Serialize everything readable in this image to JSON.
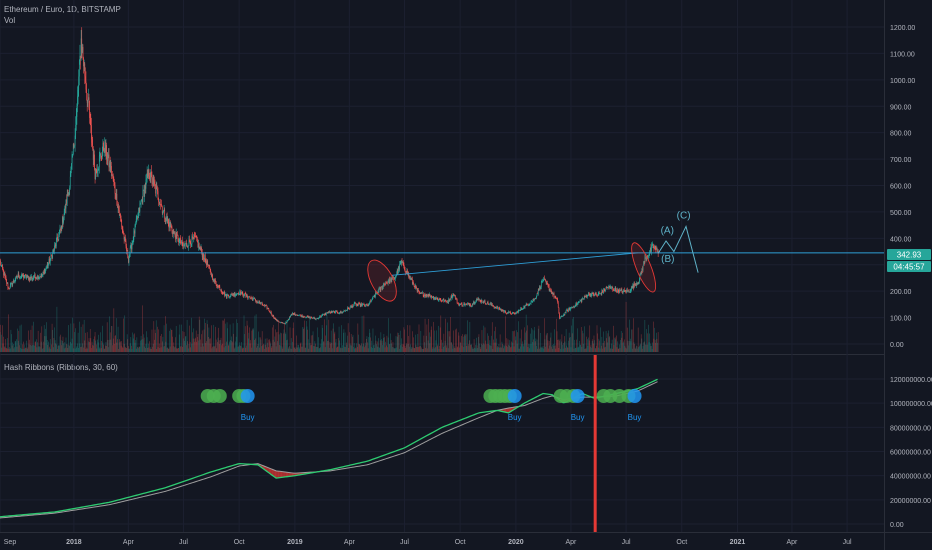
{
  "header": {
    "symbol": "Ethereum / Euro, 1D, BITSTAMP",
    "vol_label": "Vol",
    "indicator_label": "Hash Ribbons (Ribbons, 30, 60)"
  },
  "price_badge": "342.93",
  "countdown_badge": "04:45:57",
  "colors": {
    "background": "#131722",
    "up": "#26a69a",
    "down": "#ef5350",
    "hline": "#2e9ed6",
    "wave": "#5fb3c9",
    "ribbon_fast": "#2ecc71",
    "ribbon_slow": "#9e9e9e",
    "marker_green": "#4caf50",
    "marker_blue": "#2196f3",
    "vline": "#e53935"
  },
  "chart_data": [
    {
      "type": "candlestick",
      "title": "Ethereum / Euro, 1D, BITSTAMP",
      "y_ticks": [
        "1200.00",
        "1100.00",
        "1000.00",
        "900.00",
        "800.00",
        "700.00",
        "600.00",
        "500.00",
        "400.00",
        "300.00",
        "200.00",
        "100.00",
        "0.00"
      ],
      "ylim": [
        0,
        1200
      ],
      "x_ticks": [
        "Sep",
        "2018",
        "Apr",
        "Jul",
        "Oct",
        "2019",
        "Apr",
        "Jul",
        "Oct",
        "2020",
        "Apr",
        "Jul",
        "Oct",
        "2021",
        "Apr",
        "Jul"
      ],
      "x_range": [
        "2017-09-01",
        "2021-08-31"
      ],
      "price_path": [
        [
          "2017-09-01",
          310
        ],
        [
          "2017-09-15",
          210
        ],
        [
          "2017-10-01",
          260
        ],
        [
          "2017-10-20",
          250
        ],
        [
          "2017-11-10",
          260
        ],
        [
          "2017-11-25",
          330
        ],
        [
          "2017-12-10",
          430
        ],
        [
          "2017-12-25",
          600
        ],
        [
          "2018-01-05",
          850
        ],
        [
          "2018-01-13",
          1150
        ],
        [
          "2018-01-25",
          900
        ],
        [
          "2018-02-05",
          650
        ],
        [
          "2018-02-20",
          750
        ],
        [
          "2018-03-05",
          640
        ],
        [
          "2018-03-20",
          460
        ],
        [
          "2018-04-01",
          320
        ],
        [
          "2018-04-20",
          520
        ],
        [
          "2018-05-05",
          650
        ],
        [
          "2018-05-20",
          560
        ],
        [
          "2018-06-01",
          480
        ],
        [
          "2018-06-15",
          420
        ],
        [
          "2018-07-01",
          370
        ],
        [
          "2018-07-20",
          400
        ],
        [
          "2018-08-10",
          300
        ],
        [
          "2018-08-20",
          240
        ],
        [
          "2018-09-10",
          180
        ],
        [
          "2018-10-01",
          195
        ],
        [
          "2018-10-20",
          175
        ],
        [
          "2018-11-15",
          140
        ],
        [
          "2018-12-01",
          90
        ],
        [
          "2018-12-15",
          75
        ],
        [
          "2018-12-28",
          115
        ],
        [
          "2019-01-15",
          105
        ],
        [
          "2019-02-05",
          95
        ],
        [
          "2019-02-25",
          120
        ],
        [
          "2019-03-20",
          120
        ],
        [
          "2019-04-10",
          150
        ],
        [
          "2019-05-01",
          145
        ],
        [
          "2019-05-15",
          190
        ],
        [
          "2019-05-30",
          230
        ],
        [
          "2019-06-15",
          250
        ],
        [
          "2019-06-26",
          310
        ],
        [
          "2019-07-10",
          250
        ],
        [
          "2019-07-25",
          190
        ],
        [
          "2019-08-10",
          185
        ],
        [
          "2019-08-25",
          170
        ],
        [
          "2019-09-10",
          160
        ],
        [
          "2019-09-20",
          190
        ],
        [
          "2019-09-28",
          150
        ],
        [
          "2019-10-20",
          150
        ],
        [
          "2019-10-28",
          170
        ],
        [
          "2019-11-20",
          150
        ],
        [
          "2019-12-15",
          120
        ],
        [
          "2019-12-31",
          115
        ],
        [
          "2020-01-20",
          150
        ],
        [
          "2020-02-01",
          170
        ],
        [
          "2020-02-15",
          245
        ],
        [
          "2020-02-28",
          200
        ],
        [
          "2020-03-10",
          160
        ],
        [
          "2020-03-13",
          95
        ],
        [
          "2020-03-25",
          125
        ],
        [
          "2020-04-10",
          150
        ],
        [
          "2020-04-30",
          190
        ],
        [
          "2020-05-15",
          185
        ],
        [
          "2020-06-01",
          215
        ],
        [
          "2020-06-20",
          200
        ],
        [
          "2020-07-05",
          200
        ],
        [
          "2020-07-22",
          240
        ],
        [
          "2020-08-01",
          320
        ],
        [
          "2020-08-15",
          370
        ],
        [
          "2020-08-23",
          343
        ]
      ],
      "horizontal_line": 345,
      "trendline": [
        [
          "2019-06-10",
          260
        ],
        [
          "2020-07-20",
          345
        ]
      ],
      "ellipses": [
        {
          "center": [
            "2019-05-25",
            240
          ],
          "rx_days": 18,
          "ry_value": 85,
          "angle": -28
        },
        {
          "center": [
            "2020-07-30",
            290
          ],
          "rx_days": 12,
          "ry_value": 100,
          "angle": -22
        }
      ],
      "projection": [
        [
          "2020-08-23",
          343
        ],
        [
          "2020-09-05",
          390
        ],
        [
          "2020-09-18",
          350
        ],
        [
          "2020-10-08",
          445
        ],
        [
          "2020-10-28",
          270
        ]
      ],
      "wave_labels": [
        {
          "text": "(A)",
          "date": "2020-09-07",
          "value": 418
        },
        {
          "text": "(B)",
          "date": "2020-09-08",
          "value": 310
        },
        {
          "text": "(C)",
          "date": "2020-10-04",
          "value": 475
        }
      ]
    },
    {
      "type": "line",
      "title": "Hash Ribbons (Ribbons, 30, 60)",
      "y_ticks": [
        "120000000.00",
        "100000000.00",
        "80000000.00",
        "60000000.00",
        "40000000.00",
        "20000000.00",
        "0.00"
      ],
      "ylim": [
        0,
        120000000
      ],
      "series": [
        {
          "values": [
            [
              "2017-09-01",
              6000000
            ],
            [
              "2017-12-01",
              10000000
            ],
            [
              "2018-03-01",
              18000000
            ],
            [
              "2018-06-01",
              30000000
            ],
            [
              "2018-08-15",
              43000000
            ],
            [
              "2018-10-01",
              50000000
            ],
            [
              "2018-11-01",
              49000000
            ],
            [
              "2018-12-01",
              38000000
            ],
            [
              "2019-01-01",
              40000000
            ],
            [
              "2019-03-01",
              45000000
            ],
            [
              "2019-05-01",
              52000000
            ],
            [
              "2019-07-01",
              63000000
            ],
            [
              "2019-09-01",
              80000000
            ],
            [
              "2019-11-01",
              92000000
            ],
            [
              "2019-12-01",
              94000000
            ],
            [
              "2019-12-20",
              92000000
            ],
            [
              "2020-01-15",
              100000000
            ],
            [
              "2020-02-15",
              108000000
            ],
            [
              "2020-03-01",
              107000000
            ],
            [
              "2020-03-20",
              100000000
            ],
            [
              "2020-04-20",
              108000000
            ],
            [
              "2020-05-10",
              104000000
            ],
            [
              "2020-06-15",
              108000000
            ],
            [
              "2020-07-20",
              112000000
            ],
            [
              "2020-08-23",
              120000000
            ]
          ]
        },
        {
          "values": [
            [
              "2017-09-01",
              5000000
            ],
            [
              "2017-12-01",
              9000000
            ],
            [
              "2018-03-01",
              16000000
            ],
            [
              "2018-06-01",
              27000000
            ],
            [
              "2018-08-15",
              39000000
            ],
            [
              "2018-10-01",
              48000000
            ],
            [
              "2018-11-01",
              50000000
            ],
            [
              "2018-12-01",
              44000000
            ],
            [
              "2019-01-01",
              42000000
            ],
            [
              "2019-03-01",
              44000000
            ],
            [
              "2019-05-01",
              49000000
            ],
            [
              "2019-07-01",
              59000000
            ],
            [
              "2019-09-01",
              75000000
            ],
            [
              "2019-11-01",
              88000000
            ],
            [
              "2019-12-01",
              94000000
            ],
            [
              "2019-12-20",
              96000000
            ],
            [
              "2020-01-15",
              98000000
            ],
            [
              "2020-02-15",
              104000000
            ],
            [
              "2020-03-01",
              106000000
            ],
            [
              "2020-03-20",
              103000000
            ],
            [
              "2020-04-20",
              105000000
            ],
            [
              "2020-05-10",
              105000000
            ],
            [
              "2020-06-15",
              106000000
            ],
            [
              "2020-07-20",
              110000000
            ],
            [
              "2020-08-23",
              118000000
            ]
          ]
        }
      ],
      "markers": [
        {
          "date": "2018-08-10",
          "color": "green"
        },
        {
          "date": "2018-08-20",
          "color": "green"
        },
        {
          "date": "2018-08-30",
          "color": "green"
        },
        {
          "date": "2018-10-01",
          "color": "green"
        },
        {
          "date": "2018-10-08",
          "color": "green"
        },
        {
          "date": "2018-10-15",
          "color": "blue"
        },
        {
          "date": "2019-11-20",
          "color": "green"
        },
        {
          "date": "2019-11-28",
          "color": "green"
        },
        {
          "date": "2019-12-06",
          "color": "green"
        },
        {
          "date": "2019-12-14",
          "color": "green"
        },
        {
          "date": "2019-12-22",
          "color": "green"
        },
        {
          "date": "2019-12-30",
          "color": "blue"
        },
        {
          "date": "2020-03-15",
          "color": "green"
        },
        {
          "date": "2020-03-25",
          "color": "green"
        },
        {
          "date": "2020-04-05",
          "color": "green"
        },
        {
          "date": "2020-04-12",
          "color": "blue"
        },
        {
          "date": "2020-05-25",
          "color": "green"
        },
        {
          "date": "2020-06-05",
          "color": "green"
        },
        {
          "date": "2020-06-20",
          "color": "green"
        },
        {
          "date": "2020-07-05",
          "color": "green"
        },
        {
          "date": "2020-07-15",
          "color": "blue"
        }
      ],
      "marker_labels": [
        {
          "text": "Buy",
          "date": "2018-10-15"
        },
        {
          "text": "Buy",
          "date": "2019-12-30"
        },
        {
          "text": "Buy",
          "date": "2020-04-12"
        },
        {
          "text": "Buy",
          "date": "2020-07-15"
        }
      ],
      "vertical_line": "2020-05-11"
    }
  ]
}
